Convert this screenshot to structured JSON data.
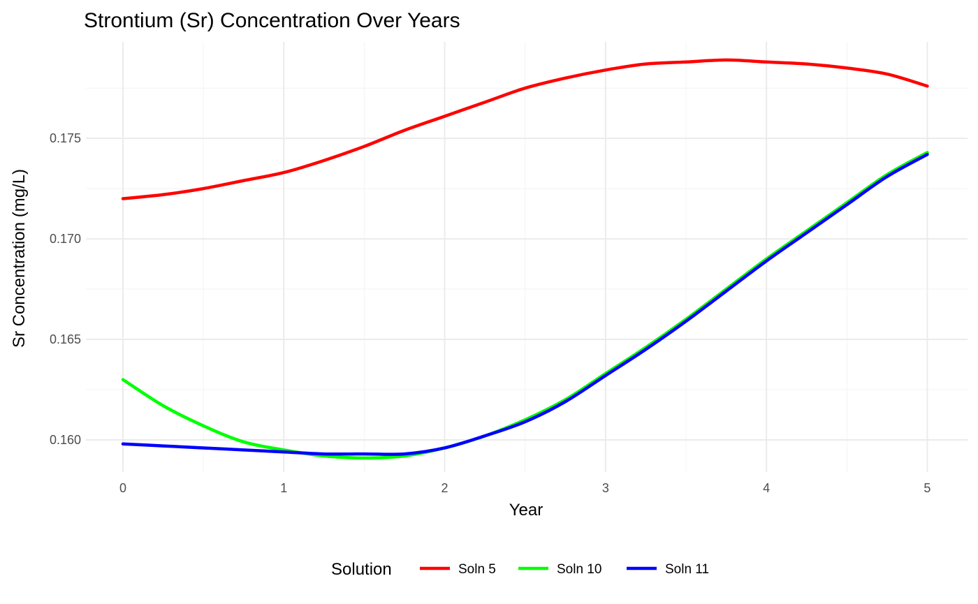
{
  "chart_data": {
    "type": "line",
    "title": "Strontium (Sr) Concentration Over Years",
    "xlabel": "Year",
    "ylabel": "Sr Concentration (mg/L)",
    "xlim": [
      -0.23,
      5.25
    ],
    "ylim": [
      0.1584,
      0.1798
    ],
    "x_ticks": [
      0,
      1,
      2,
      3,
      4,
      5
    ],
    "x_tick_labels": [
      "0",
      "1",
      "2",
      "3",
      "4",
      "5"
    ],
    "y_ticks": [
      0.16,
      0.165,
      0.17,
      0.175
    ],
    "y_tick_labels": [
      "0.160",
      "0.165",
      "0.170",
      "0.175"
    ],
    "grid": true,
    "legend": {
      "title": "Solution",
      "position": "bottom"
    },
    "series": [
      {
        "name": "Soln 5",
        "color": "#ff0000",
        "x": [
          0,
          0.25,
          0.5,
          0.75,
          1.0,
          1.25,
          1.5,
          1.75,
          2.0,
          2.25,
          2.5,
          2.75,
          3.0,
          3.25,
          3.5,
          3.75,
          4.0,
          4.25,
          4.5,
          4.75,
          5.0
        ],
        "y": [
          0.172,
          0.1722,
          0.1725,
          0.1729,
          0.1733,
          0.1739,
          0.1746,
          0.1754,
          0.1761,
          0.1768,
          0.1775,
          0.178,
          0.1784,
          0.1787,
          0.1788,
          0.1789,
          0.1788,
          0.1787,
          0.1785,
          0.1782,
          0.1776
        ]
      },
      {
        "name": "Soln 10",
        "color": "#00ff00",
        "x": [
          0,
          0.25,
          0.5,
          0.75,
          1.0,
          1.25,
          1.5,
          1.75,
          2.0,
          2.25,
          2.5,
          2.75,
          3.0,
          3.25,
          3.5,
          3.75,
          4.0,
          4.25,
          4.5,
          4.75,
          5.0
        ],
        "y": [
          0.163,
          0.1617,
          0.1607,
          0.1599,
          0.1595,
          0.1592,
          0.1591,
          0.1592,
          0.1596,
          0.1602,
          0.161,
          0.162,
          0.1633,
          0.1646,
          0.166,
          0.1675,
          0.169,
          0.1704,
          0.1718,
          0.1732,
          0.1743
        ]
      },
      {
        "name": "Soln 11",
        "color": "#0000ff",
        "x": [
          0,
          0.25,
          0.5,
          0.75,
          1.0,
          1.25,
          1.5,
          1.75,
          2.0,
          2.25,
          2.5,
          2.75,
          3.0,
          3.25,
          3.5,
          3.75,
          4.0,
          4.25,
          4.5,
          4.75,
          5.0
        ],
        "y": [
          0.1598,
          0.1597,
          0.1596,
          0.1595,
          0.1594,
          0.1593,
          0.1593,
          0.1593,
          0.1596,
          0.1602,
          0.1609,
          0.1619,
          0.1632,
          0.1645,
          0.1659,
          0.1674,
          0.1689,
          0.1703,
          0.1717,
          0.1731,
          0.1742
        ]
      }
    ]
  }
}
